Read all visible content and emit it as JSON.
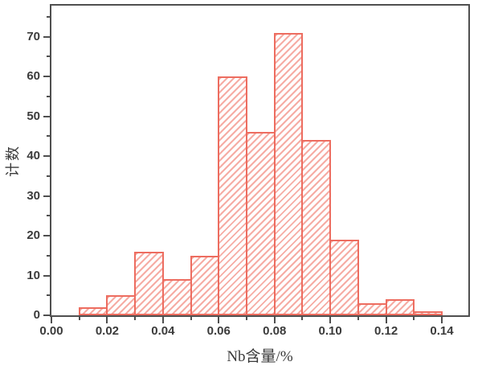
{
  "chart_data": {
    "type": "bar",
    "subtype": "histogram",
    "title": "",
    "xlabel": "Nb含量/%",
    "ylabel": "计数",
    "bin_width": 0.01,
    "bin_starts": [
      0.01,
      0.02,
      0.03,
      0.04,
      0.05,
      0.06,
      0.07,
      0.08,
      0.09,
      0.1,
      0.11,
      0.12,
      0.13
    ],
    "values": [
      2,
      5,
      16,
      9,
      15,
      60,
      46,
      71,
      44,
      19,
      3,
      4,
      1
    ],
    "xlim": [
      0,
      0.1495
    ],
    "ylim": [
      0,
      77.8
    ],
    "grid": false,
    "legend": "none",
    "x_major_ticks": [
      0.0,
      0.02,
      0.04,
      0.06,
      0.08,
      0.1,
      0.12,
      0.14
    ],
    "x_tick_labels": [
      "0.00",
      "0.02",
      "0.04",
      "0.06",
      "0.08",
      "0.10",
      "0.12",
      "0.14"
    ],
    "x_minor_ticks": [
      0.01,
      0.03,
      0.05,
      0.07,
      0.09,
      0.11,
      0.13
    ],
    "y_major_ticks": [
      0,
      10,
      20,
      30,
      40,
      50,
      60,
      70
    ],
    "y_tick_labels": [
      "0",
      "10",
      "20",
      "30",
      "40",
      "50",
      "60",
      "70"
    ],
    "y_minor_ticks": [
      5,
      15,
      25,
      35,
      45,
      55,
      65,
      75
    ],
    "colors": {
      "bar_edge": "#ed6d60",
      "bar_hatch": "#f6aca4",
      "bar_fill": "#ffffff",
      "axis": "#4f4f4f",
      "tick_label": "#3b3b3b",
      "background": "#ffffff"
    },
    "hatch_style": "forward-diagonal"
  }
}
